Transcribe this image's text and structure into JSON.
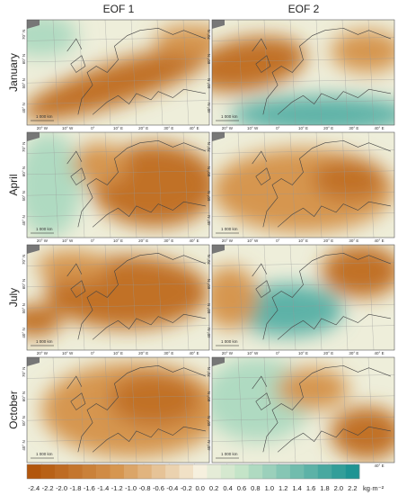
{
  "columns": [
    "EOF 1",
    "EOF 2"
  ],
  "rows": [
    "January",
    "April",
    "July",
    "October"
  ],
  "map_labels": {
    "lat": [
      "70° N",
      "60° N",
      "50° N",
      "40° N"
    ],
    "lon": [
      "20° W",
      "10° W",
      "0°",
      "10° E",
      "20° E",
      "30° E",
      "40° E"
    ],
    "scale": "1 000 km"
  },
  "colorbar": {
    "ticks": [
      -2.4,
      -2.2,
      {
        "value": -2,
        "label": "-2.0"
      },
      -1.8,
      -1.6,
      -1.4,
      -1.2,
      {
        "value": -1,
        "label": "-1.0"
      },
      -0.8,
      -0.6,
      -0.4,
      -0.2,
      {
        "value": 0,
        "label": "0.0"
      },
      0.2,
      0.4,
      0.6,
      0.8,
      {
        "value": 1,
        "label": "1.0"
      },
      1.2,
      1.4,
      1.6,
      1.8,
      {
        "value": 2,
        "label": "2.0"
      },
      2.2
    ],
    "unit": "kg·m⁻²"
  }
}
